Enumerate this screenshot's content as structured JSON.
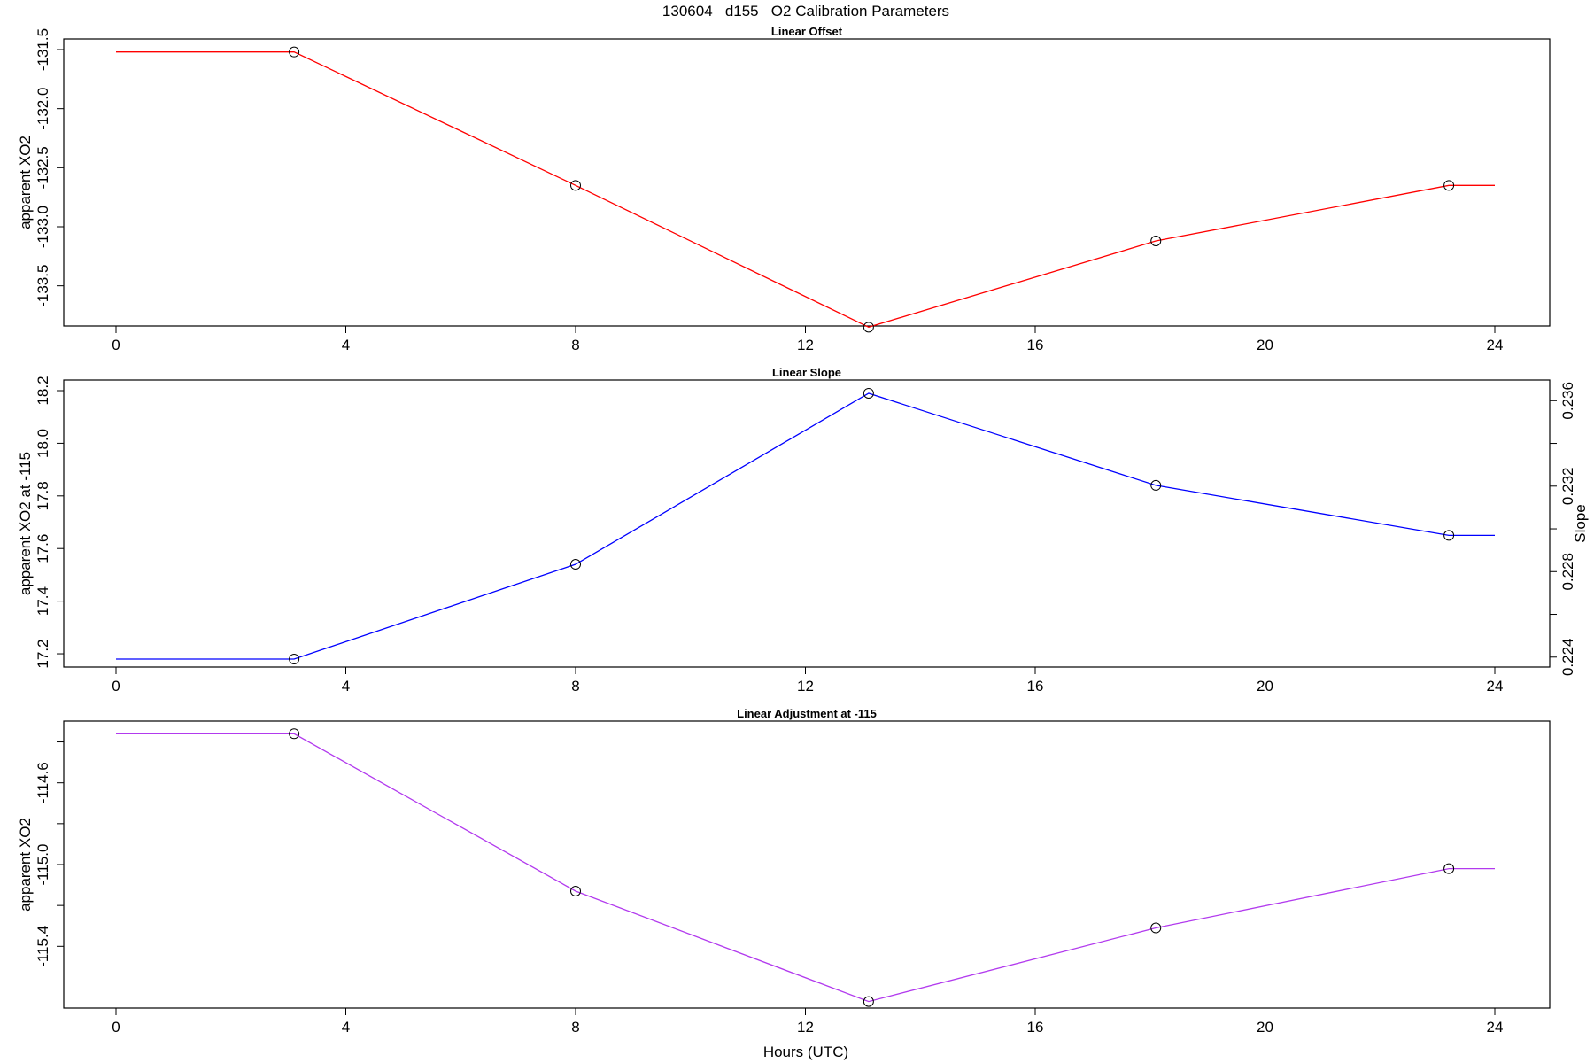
{
  "figure_title": "130604   d155   O2 Calibration Parameters",
  "xlabel": "Hours (UTC)",
  "colors": {
    "offset": "#ff0000",
    "slope": "#0000ff",
    "adjustment": "#b23aee"
  },
  "chart_data": [
    {
      "type": "line",
      "title": "Linear Offset",
      "xlabel": "",
      "ylabel": "apparent XO2",
      "xlim": [
        0,
        24
      ],
      "ylim": [
        -133.75,
        -131.5
      ],
      "xticks": [
        0,
        4,
        8,
        12,
        16,
        20,
        24
      ],
      "yticks": [
        -131.5,
        -132.0,
        -132.5,
        -133.0,
        -133.5
      ],
      "ytick_labels": [
        "-131.5",
        "-132.0",
        "-132.5",
        "-133.0",
        "-133.5"
      ],
      "series": [
        {
          "color": "#ff0000",
          "x": [
            3.1,
            8.0,
            13.1,
            18.1,
            23.2
          ],
          "y": [
            -131.52,
            -132.65,
            -133.85,
            -133.12,
            -132.65
          ],
          "line_extends_to": [
            0,
            24
          ]
        }
      ]
    },
    {
      "type": "line",
      "title": "Linear Slope",
      "xlabel": "",
      "ylabel": "apparent XO2 at -115",
      "ylabel_right": "Slope",
      "xlim": [
        0,
        24
      ],
      "ylim": [
        17.19,
        18.2
      ],
      "xticks": [
        0,
        4,
        8,
        12,
        16,
        20,
        24
      ],
      "yticks": [
        17.2,
        17.4,
        17.6,
        17.8,
        18.0,
        18.2
      ],
      "ytick_labels": [
        "17.2",
        "17.4",
        "17.6",
        "17.8",
        "18.0",
        "18.2"
      ],
      "yticks_right": [
        0.224,
        0.226,
        0.228,
        0.23,
        0.232,
        0.234,
        0.236
      ],
      "ytick_labels_right": [
        "0.224",
        "",
        "0.228",
        "",
        "0.232",
        "",
        "0.236"
      ],
      "series": [
        {
          "color": "#0000ff",
          "x": [
            3.1,
            8.0,
            13.1,
            18.1,
            23.2
          ],
          "y": [
            17.18,
            17.54,
            18.19,
            17.84,
            17.65
          ],
          "line_extends_to": [
            0,
            24
          ]
        }
      ]
    },
    {
      "type": "line",
      "title": "Linear Adjustment at -115",
      "xlabel": "Hours (UTC)",
      "ylabel": "apparent XO2",
      "xlim": [
        0,
        24
      ],
      "ylim": [
        -115.65,
        -114.35
      ],
      "xticks": [
        0,
        4,
        8,
        12,
        16,
        20,
        24
      ],
      "yticks": [
        -114.6,
        -115.0,
        -115.4
      ],
      "ytick_labels": [
        "-114.6",
        "-115.0",
        "-115.4"
      ],
      "extra_yticks": [
        -114.4,
        -114.8,
        -115.2
      ],
      "series": [
        {
          "color": "#b23aee",
          "x": [
            3.1,
            8.0,
            13.1,
            18.1,
            23.2
          ],
          "y": [
            -114.36,
            -115.13,
            -115.67,
            -115.31,
            -115.02
          ],
          "line_extends_to": [
            0,
            24
          ]
        }
      ]
    }
  ]
}
